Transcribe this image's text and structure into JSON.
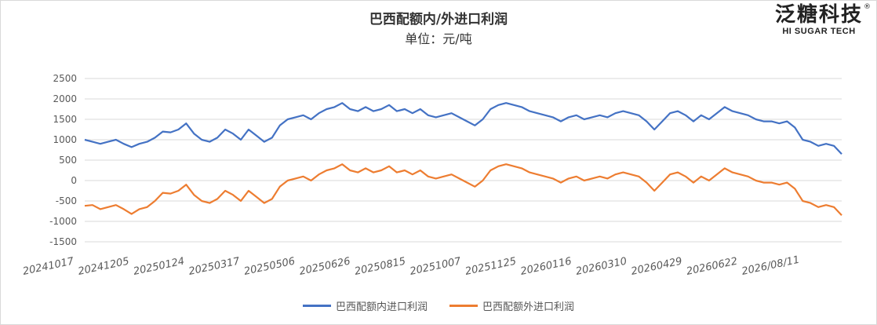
{
  "chart_data": {
    "type": "line",
    "title": "巴西配额内/外进口利润",
    "subtitle": "单位：元/吨",
    "xlabel": "",
    "ylabel": "",
    "ylim": [
      -1500,
      2500
    ],
    "yticks": [
      2500,
      2000,
      1500,
      1000,
      500,
      0,
      -500,
      -1000,
      -1500
    ],
    "xticks": [
      "20241017",
      "20241205",
      "20250124",
      "20250317",
      "20250506",
      "20250626",
      "20250815",
      "20251007",
      "20251125",
      "20260116",
      "20260310",
      "20260429",
      "20260622",
      "2026/08/11"
    ],
    "grid": true,
    "legend_position": "bottom",
    "series": [
      {
        "name": "巴西配额内进口利润",
        "color": "#4472C4",
        "values": [
          1000,
          950,
          900,
          950,
          1000,
          900,
          820,
          900,
          950,
          1050,
          1200,
          1180,
          1250,
          1400,
          1150,
          1000,
          950,
          1050,
          1250,
          1150,
          1000,
          1250,
          1100,
          950,
          1050,
          1350,
          1500,
          1550,
          1600,
          1500,
          1650,
          1750,
          1800,
          1900,
          1750,
          1700,
          1800,
          1700,
          1750,
          1850,
          1700,
          1750,
          1650,
          1750,
          1600,
          1550,
          1600,
          1650,
          1550,
          1450,
          1350,
          1500,
          1750,
          1850,
          1900,
          1850,
          1800,
          1700,
          1650,
          1600,
          1550,
          1450,
          1550,
          1600,
          1500,
          1550,
          1600,
          1550,
          1650,
          1700,
          1650,
          1600,
          1450,
          1250,
          1450,
          1650,
          1700,
          1600,
          1450,
          1600,
          1500,
          1650,
          1800,
          1700,
          1650,
          1600,
          1500,
          1450,
          1450,
          1400,
          1450,
          1300,
          1000,
          950,
          850,
          900,
          850,
          650
        ]
      },
      {
        "name": "巴西配额外进口利润",
        "color": "#ED7D31",
        "values": [
          -620,
          -600,
          -700,
          -650,
          -600,
          -700,
          -820,
          -700,
          -650,
          -500,
          -300,
          -320,
          -250,
          -100,
          -350,
          -500,
          -550,
          -450,
          -250,
          -350,
          -500,
          -250,
          -400,
          -550,
          -450,
          -150,
          0,
          50,
          100,
          0,
          150,
          250,
          300,
          400,
          250,
          200,
          300,
          200,
          250,
          350,
          200,
          250,
          150,
          250,
          100,
          50,
          100,
          150,
          50,
          -50,
          -150,
          0,
          250,
          350,
          400,
          350,
          300,
          200,
          150,
          100,
          50,
          -50,
          50,
          100,
          0,
          50,
          100,
          50,
          150,
          200,
          150,
          100,
          -50,
          -250,
          -50,
          150,
          200,
          100,
          -50,
          100,
          0,
          150,
          300,
          200,
          150,
          100,
          0,
          -50,
          -50,
          -100,
          -50,
          -200,
          -500,
          -550,
          -650,
          -600,
          -650,
          -850
        ]
      }
    ]
  },
  "brand": {
    "name_cn": "泛糖科技",
    "name_en": "HI SUGAR TECH",
    "reg_mark": "®"
  }
}
